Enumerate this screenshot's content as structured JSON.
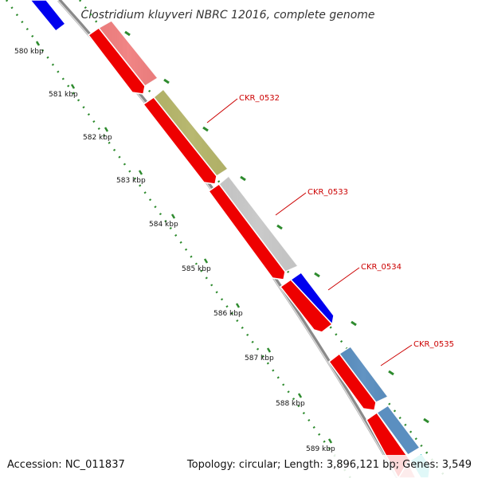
{
  "title": "Clostridium kluyveri NBRC 12016, complete genome",
  "accession": "Accession: NC_011837",
  "summary": "Topology: circular; Length: 3,896,121 bp; Genes: 3,549",
  "ticks": [
    "580 kbp",
    "581 kbp",
    "582 kbp",
    "583 kbp",
    "584 kbp",
    "585 kbp",
    "586 kbp",
    "587 kbp",
    "588 kbp",
    "589 kbp"
  ],
  "gene_labels": [
    "CKR_0532",
    "CKR_0533",
    "CKR_0534",
    "CKR_0535"
  ],
  "colors": {
    "backbone": "#8a8a8a",
    "tick_dots": "#2e8b2e",
    "cds_reverse": "#ee0000",
    "cds_pink": "#f08080",
    "cds_olive": "#b5b56a",
    "cds_gray": "#c8c8c8",
    "cds_blue": "#0000ee",
    "cds_steel": "#5b8fc0",
    "cds_cyan": "#33cccc",
    "label_red": "#cc0000"
  }
}
